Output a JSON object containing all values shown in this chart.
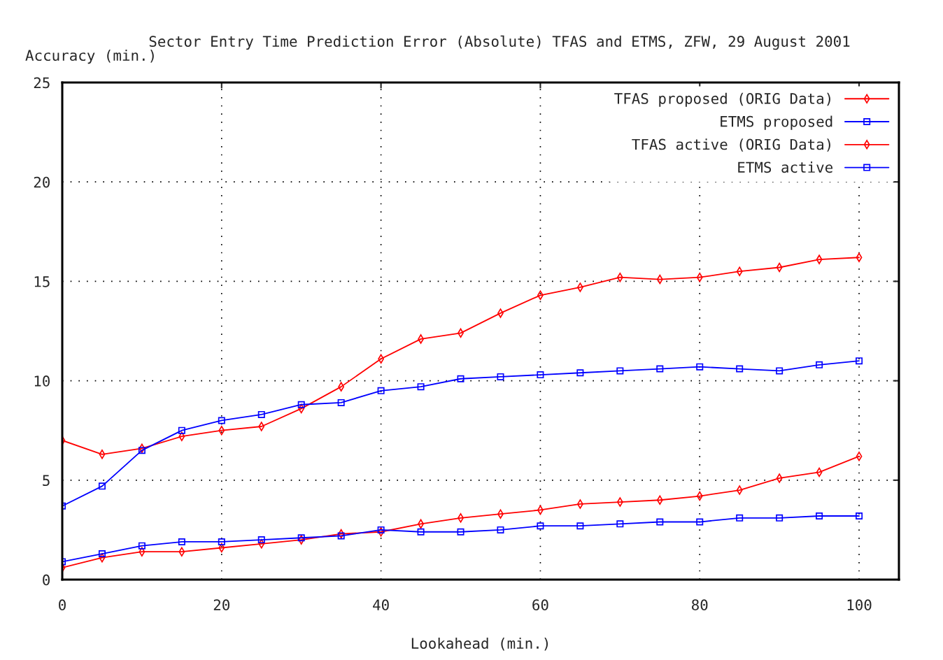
{
  "chart_data": {
    "type": "line",
    "title": "Sector Entry Time Prediction Error (Absolute) TFAS and ETMS, ZFW, 29 August 2001",
    "xlabel": "Lookahead (min.)",
    "ylabel": "Accuracy (min.)",
    "x": [
      0,
      5,
      10,
      15,
      20,
      25,
      30,
      35,
      40,
      45,
      50,
      55,
      60,
      65,
      70,
      75,
      80,
      85,
      90,
      95,
      100
    ],
    "series": [
      {
        "name": "TFAS proposed (ORIG Data)",
        "color": "#ff0000",
        "marker": "diamond",
        "values": [
          7.0,
          6.3,
          6.6,
          7.2,
          7.5,
          7.7,
          8.6,
          9.7,
          11.1,
          12.1,
          12.4,
          13.4,
          14.3,
          14.7,
          15.2,
          15.1,
          15.2,
          15.5,
          15.7,
          16.1,
          16.2
        ]
      },
      {
        "name": "ETMS proposed",
        "color": "#0000ff",
        "marker": "square",
        "values": [
          3.7,
          4.7,
          6.5,
          7.5,
          8.0,
          8.3,
          8.8,
          8.9,
          9.5,
          9.7,
          10.1,
          10.2,
          10.3,
          10.4,
          10.5,
          10.6,
          10.7,
          10.6,
          10.5,
          10.8,
          11.0
        ]
      },
      {
        "name": "TFAS active (ORIG Data)",
        "color": "#ff0000",
        "marker": "diamond",
        "values": [
          0.6,
          1.1,
          1.4,
          1.4,
          1.6,
          1.8,
          2.0,
          2.3,
          2.4,
          2.8,
          3.1,
          3.3,
          3.5,
          3.8,
          3.9,
          4.0,
          4.2,
          4.5,
          5.1,
          5.4,
          6.2
        ]
      },
      {
        "name": "ETMS active",
        "color": "#0000ff",
        "marker": "square",
        "values": [
          0.9,
          1.3,
          1.7,
          1.9,
          1.9,
          2.0,
          2.1,
          2.2,
          2.5,
          2.4,
          2.4,
          2.5,
          2.7,
          2.7,
          2.8,
          2.9,
          2.9,
          3.1,
          3.1,
          3.2,
          3.2
        ]
      }
    ],
    "xlim": [
      0,
      105
    ],
    "ylim": [
      0,
      25
    ],
    "xticks": [
      0,
      20,
      40,
      60,
      80,
      100
    ],
    "yticks": [
      0,
      5,
      10,
      15,
      20,
      25
    ],
    "grid": true,
    "legend": "top right",
    "line_style": "solid"
  }
}
